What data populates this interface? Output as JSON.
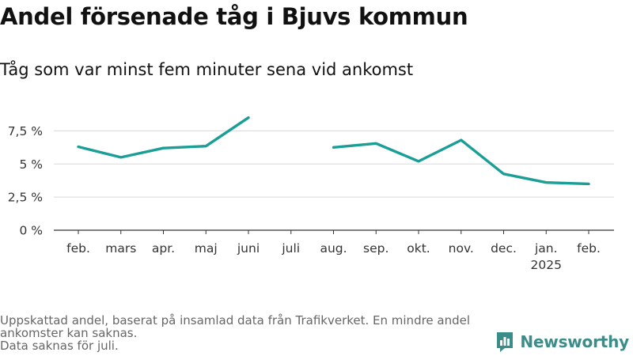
{
  "header": {
    "title": "Andel försenade tåg i Bjuvs kommun",
    "subtitle": "Tåg som var minst fem minuter sena vid ankomst"
  },
  "chart_data": {
    "type": "line",
    "title": "Andel försenade tåg i Bjuvs kommun",
    "subtitle": "Tåg som var minst fem minuter sena vid ankomst",
    "xlabel": "",
    "ylabel": "",
    "categories": [
      "feb.",
      "mars",
      "apr.",
      "maj",
      "juni",
      "juli",
      "aug.",
      "sep.",
      "okt.",
      "nov.",
      "dec.",
      "jan.",
      "feb."
    ],
    "x_sublabels": [
      "",
      "",
      "",
      "",
      "",
      "",
      "",
      "",
      "",
      "",
      "",
      "2025",
      ""
    ],
    "series": [
      {
        "values": [
          6.3,
          5.5,
          6.2,
          6.35,
          8.5,
          null,
          6.25,
          6.55,
          5.2,
          6.8,
          4.25,
          3.6,
          3.5
        ],
        "color": "#1a9e96"
      }
    ],
    "yticks": [
      0,
      2.5,
      5,
      7.5
    ],
    "ytick_labels": [
      "0 %",
      "2,5 %",
      "5 %",
      "7,5 %"
    ],
    "ylim": [
      0,
      8.6
    ],
    "grid": true,
    "legend": "none"
  },
  "footer": {
    "notes": [
      "Uppskattad andel, baserat på insamlad data från Trafikverket. En mindre andel ankomster kan saknas.",
      "Data saknas för juli."
    ],
    "brand": "Newsworthy",
    "brand_color": "#3b8d8a"
  }
}
